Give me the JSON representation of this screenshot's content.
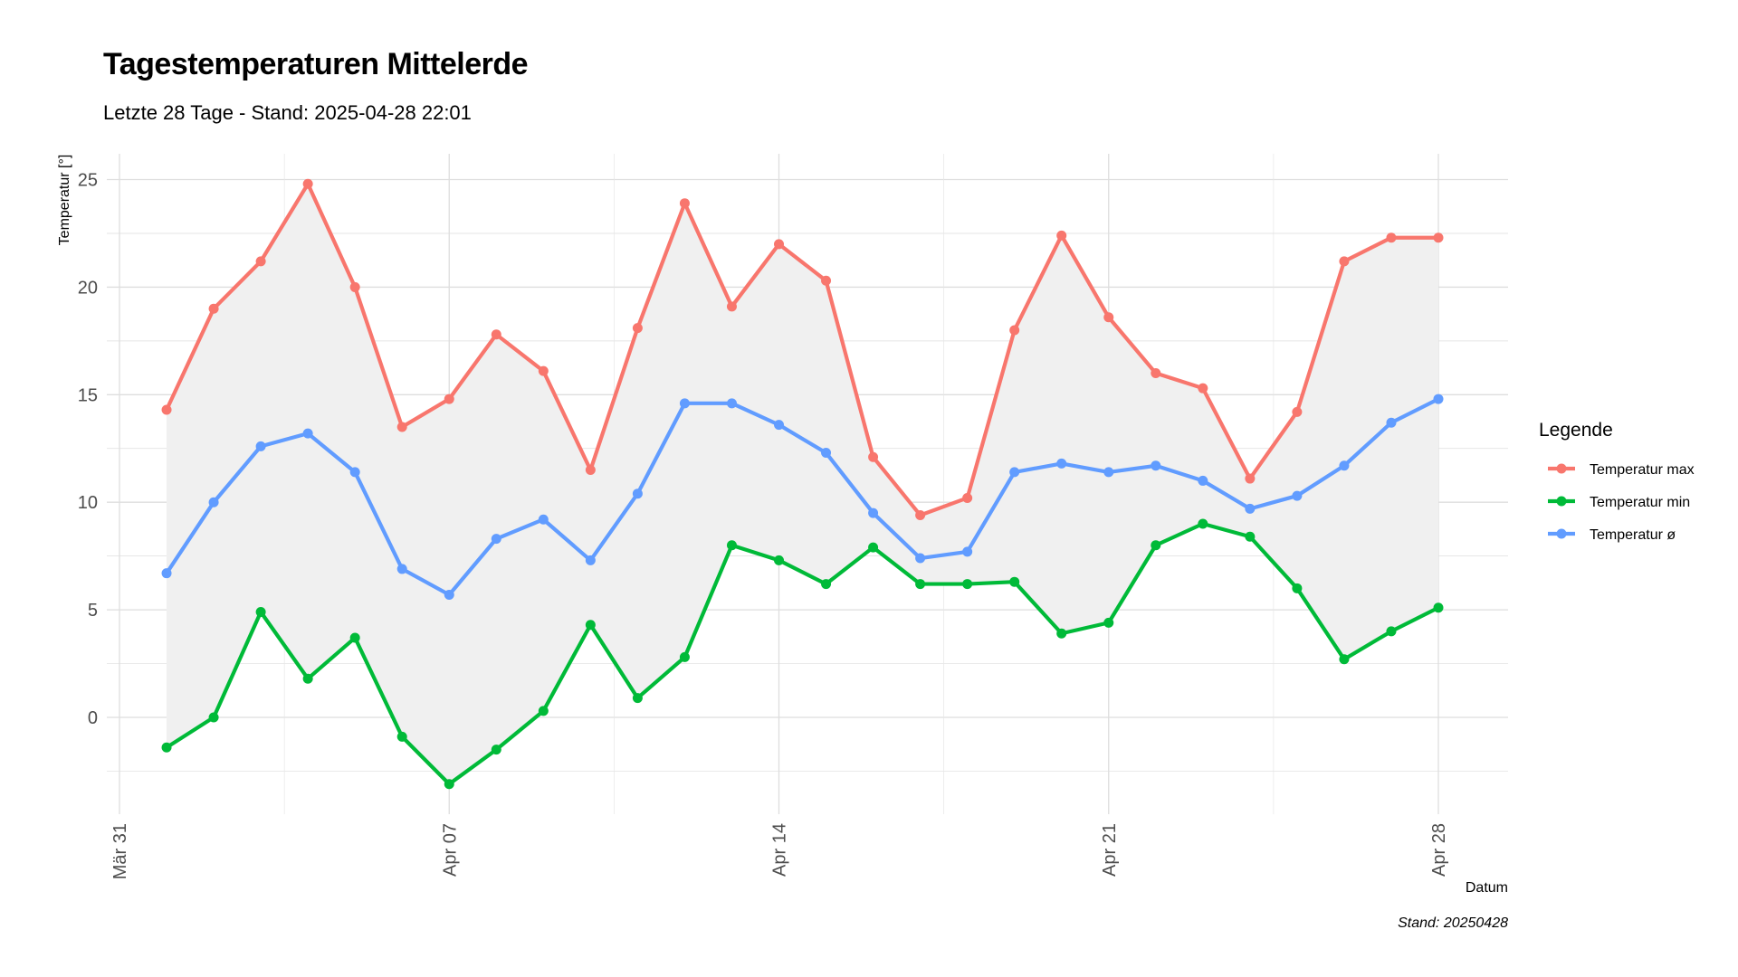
{
  "chart_data": {
    "type": "line",
    "title": "Tagestemperaturen Mittelerde",
    "subtitle": "Letzte 28 Tage - Stand: 2025-04-28 22:01",
    "xlabel": "Datum",
    "ylabel": "Temperatur [°]",
    "caption": "Stand: 20250428",
    "legend_title": "Legende",
    "legend_position": "right",
    "grid": true,
    "x_dates": [
      "2025-04-01",
      "2025-04-02",
      "2025-04-03",
      "2025-04-04",
      "2025-04-05",
      "2025-04-06",
      "2025-04-07",
      "2025-04-08",
      "2025-04-09",
      "2025-04-10",
      "2025-04-11",
      "2025-04-12",
      "2025-04-13",
      "2025-04-14",
      "2025-04-15",
      "2025-04-16",
      "2025-04-17",
      "2025-04-18",
      "2025-04-19",
      "2025-04-20",
      "2025-04-21",
      "2025-04-22",
      "2025-04-23",
      "2025-04-24",
      "2025-04-25",
      "2025-04-26",
      "2025-04-27",
      "2025-04-28"
    ],
    "x_ticks": [
      "Mär 31",
      "Apr 07",
      "Apr 14",
      "Apr 21",
      "Apr 28"
    ],
    "x_tick_dates": [
      "2025-03-31",
      "2025-04-07",
      "2025-04-14",
      "2025-04-21",
      "2025-04-28"
    ],
    "ylim": [
      -4.5,
      26.2
    ],
    "y_ticks": [
      0,
      5,
      10,
      15,
      20,
      25
    ],
    "ribbon": {
      "between": [
        "Temperatur min",
        "Temperatur max"
      ],
      "color": "#f0f0f0"
    },
    "series": [
      {
        "name": "Temperatur max",
        "color": "#F8766D",
        "values": [
          14.3,
          19.0,
          21.2,
          24.8,
          20.0,
          13.5,
          14.8,
          17.8,
          16.1,
          11.5,
          18.1,
          23.9,
          19.1,
          22.0,
          20.3,
          12.1,
          9.4,
          10.2,
          18.0,
          22.4,
          18.6,
          16.0,
          15.3,
          11.1,
          14.2,
          21.2,
          22.3,
          22.3
        ]
      },
      {
        "name": "Temperatur min",
        "color": "#00BA38",
        "values": [
          -1.4,
          0.0,
          4.9,
          1.8,
          3.7,
          -0.9,
          -3.1,
          -1.5,
          0.3,
          4.3,
          0.9,
          2.8,
          8.0,
          7.3,
          6.2,
          7.9,
          6.2,
          6.2,
          6.3,
          3.9,
          4.4,
          8.0,
          9.0,
          8.4,
          6.0,
          2.7,
          4.0,
          5.1
        ]
      },
      {
        "name": "Temperatur ø",
        "color": "#619CFF",
        "values": [
          6.7,
          10.0,
          12.6,
          13.2,
          11.4,
          6.9,
          5.7,
          8.3,
          9.2,
          7.3,
          10.4,
          14.6,
          14.6,
          13.6,
          12.3,
          9.5,
          7.4,
          7.7,
          11.4,
          11.8,
          11.4,
          11.7,
          11.0,
          9.7,
          10.3,
          11.7,
          13.7,
          14.8
        ]
      }
    ]
  }
}
